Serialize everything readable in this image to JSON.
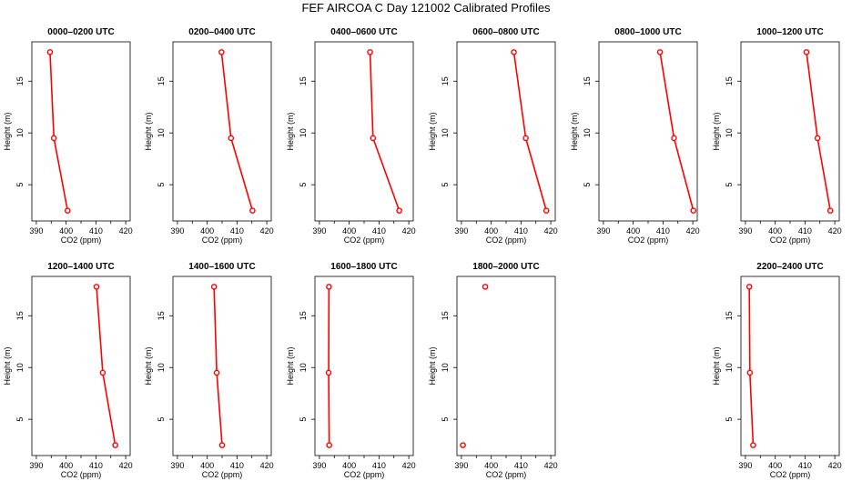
{
  "figure": {
    "title": "FEF  AIRCOA C  Day 121002  Calibrated Profiles",
    "line_color": "#ff0000"
  },
  "chart_data": [
    {
      "type": "line",
      "title": "0000–0200 UTC",
      "xlabel": "CO2 (ppm)",
      "ylabel": "Height (m)",
      "xlim": [
        388.5,
        421.5
      ],
      "ylim": [
        1.5,
        18.8
      ],
      "xticks": [
        390,
        400,
        410,
        420
      ],
      "yticks": [
        5,
        10,
        15
      ],
      "x": [
        400.5,
        395.9,
        394.6
      ],
      "y": [
        2.5,
        9.5,
        17.8
      ]
    },
    {
      "type": "line",
      "title": "0200–0400 UTC",
      "xlabel": "CO2 (ppm)",
      "ylabel": "Height (m)",
      "xlim": [
        388.5,
        421.5
      ],
      "ylim": [
        1.5,
        18.8
      ],
      "xticks": [
        390,
        400,
        410,
        420
      ],
      "yticks": [
        5,
        10,
        15
      ],
      "x": [
        415.2,
        408.0,
        404.8
      ],
      "y": [
        2.5,
        9.5,
        17.8
      ]
    },
    {
      "type": "line",
      "title": "0400–0600 UTC",
      "xlabel": "CO2 (ppm)",
      "ylabel": "Height (m)",
      "xlim": [
        388.5,
        421.5
      ],
      "ylim": [
        1.5,
        18.8
      ],
      "xticks": [
        390,
        400,
        410,
        420
      ],
      "yticks": [
        5,
        10,
        15
      ],
      "x": [
        416.8,
        408.0,
        407.0
      ],
      "y": [
        2.5,
        9.5,
        17.8
      ]
    },
    {
      "type": "line",
      "title": "0600–0800 UTC",
      "xlabel": "CO2 (ppm)",
      "ylabel": "Height (m)",
      "xlim": [
        388.5,
        421.5
      ],
      "ylim": [
        1.5,
        18.8
      ],
      "xticks": [
        390,
        400,
        410,
        420
      ],
      "yticks": [
        5,
        10,
        15
      ],
      "x": [
        418.5,
        411.6,
        407.6
      ],
      "y": [
        2.5,
        9.5,
        17.8
      ]
    },
    {
      "type": "line",
      "title": "0800–1000 UTC",
      "xlabel": "CO2 (ppm)",
      "ylabel": "Height (m)",
      "xlim": [
        388.5,
        421.5
      ],
      "ylim": [
        1.5,
        18.8
      ],
      "xticks": [
        390,
        400,
        410,
        420
      ],
      "yticks": [
        5,
        10,
        15
      ],
      "x": [
        420.2,
        413.7,
        409.0
      ],
      "y": [
        2.5,
        9.5,
        17.8
      ]
    },
    {
      "type": "line",
      "title": "1000–1200 UTC",
      "xlabel": "CO2 (ppm)",
      "ylabel": "Height (m)",
      "xlim": [
        388.5,
        421.5
      ],
      "ylim": [
        1.5,
        18.8
      ],
      "xticks": [
        390,
        400,
        410,
        420
      ],
      "yticks": [
        5,
        10,
        15
      ],
      "x": [
        418.5,
        414.2,
        410.5
      ],
      "y": [
        2.5,
        9.5,
        17.8
      ]
    },
    {
      "type": "line",
      "title": "1200–1400 UTC",
      "xlabel": "CO2 (ppm)",
      "ylabel": "Height (m)",
      "xlim": [
        388.5,
        421.5
      ],
      "ylim": [
        1.5,
        18.8
      ],
      "xticks": [
        390,
        400,
        410,
        420
      ],
      "yticks": [
        5,
        10,
        15
      ],
      "x": [
        416.5,
        412.3,
        410.2
      ],
      "y": [
        2.5,
        9.5,
        17.8
      ]
    },
    {
      "type": "line",
      "title": "1400–1600 UTC",
      "xlabel": "CO2 (ppm)",
      "ylabel": "Height (m)",
      "xlim": [
        388.5,
        421.5
      ],
      "ylim": [
        1.5,
        18.8
      ],
      "xticks": [
        390,
        400,
        410,
        420
      ],
      "yticks": [
        5,
        10,
        15
      ],
      "x": [
        405.0,
        403.2,
        402.3
      ],
      "y": [
        2.5,
        9.5,
        17.8
      ]
    },
    {
      "type": "line",
      "title": "1600–1800 UTC",
      "xlabel": "CO2 (ppm)",
      "ylabel": "Height (m)",
      "xlim": [
        388.5,
        421.5
      ],
      "ylim": [
        1.5,
        18.8
      ],
      "xticks": [
        390,
        400,
        410,
        420
      ],
      "yticks": [
        5,
        10,
        15
      ],
      "x": [
        393.3,
        393.1,
        393.2
      ],
      "y": [
        2.5,
        9.5,
        17.8
      ]
    },
    {
      "type": "scatter",
      "title": "1800–2000 UTC",
      "xlabel": "CO2 (ppm)",
      "ylabel": "Height (m)",
      "xlim": [
        388.5,
        421.5
      ],
      "ylim": [
        1.5,
        18.8
      ],
      "xticks": [
        390,
        400,
        410,
        420
      ],
      "yticks": [
        5,
        10,
        15
      ],
      "x": [
        390.5,
        398.0
      ],
      "y": [
        2.5,
        17.8
      ]
    },
    {
      "type": "line",
      "title": "2200–2400 UTC",
      "xlabel": "CO2 (ppm)",
      "ylabel": "Height (m)",
      "xlim": [
        388.5,
        421.5
      ],
      "ylim": [
        1.5,
        18.8
      ],
      "xticks": [
        390,
        400,
        410,
        420
      ],
      "yticks": [
        5,
        10,
        15
      ],
      "x": [
        392.6,
        391.5,
        391.3
      ],
      "y": [
        2.5,
        9.5,
        17.8
      ]
    }
  ]
}
